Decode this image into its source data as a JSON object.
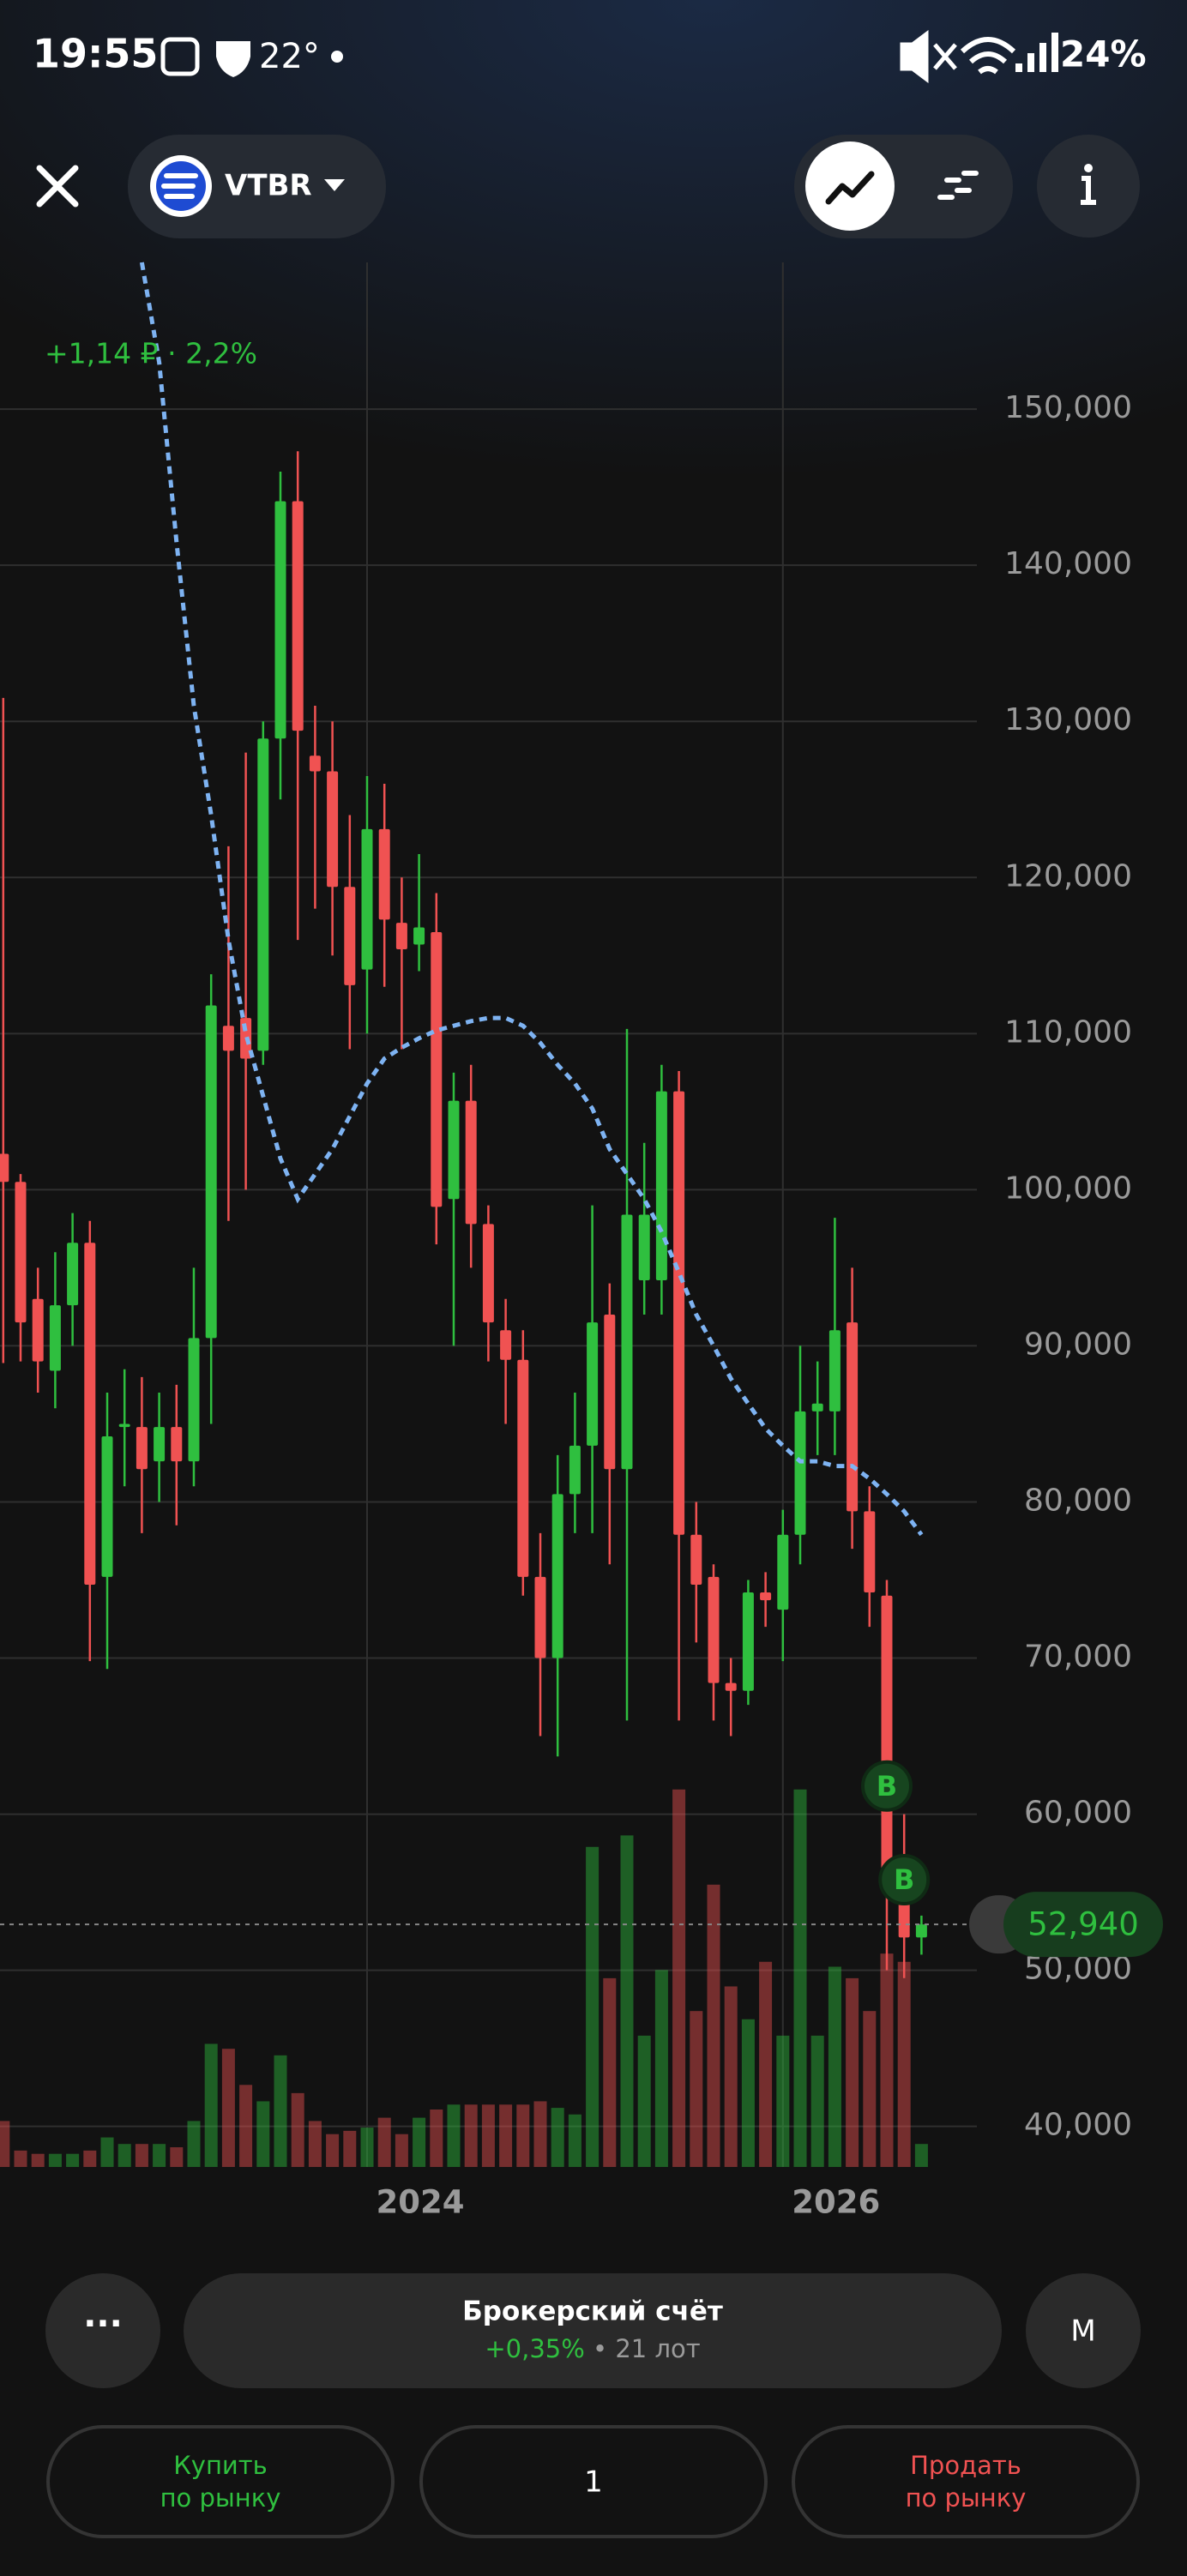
{
  "status_bar": {
    "time": "19:55",
    "temperature": "22°",
    "battery": "24%"
  },
  "header": {
    "ticker": "VTBR"
  },
  "chart_data": {
    "type": "candlestick",
    "change_label": "+1,14 ₽ · 2,2%",
    "categories": [
      null,
      null,
      null,
      null,
      null,
      null,
      null,
      null,
      null,
      null,
      null,
      null,
      null,
      null,
      null,
      null,
      null,
      null,
      null,
      null,
      null,
      "2024",
      null,
      null,
      null,
      null,
      null,
      null,
      null,
      null,
      null,
      null,
      null,
      null,
      null,
      null,
      null,
      null,
      null,
      null,
      null,
      null,
      null,
      null,
      null,
      "2026",
      null,
      null,
      null,
      null,
      null,
      null,
      null,
      null
    ],
    "open": [
      102300,
      100500,
      93000,
      88400,
      92600,
      96600,
      75200,
      84800,
      84800,
      82600,
      84800,
      82600,
      90500,
      110500,
      111000,
      108900,
      128900,
      144100,
      127800,
      126800,
      119400,
      114100,
      123100,
      117100,
      115700,
      116500,
      99400,
      105700,
      97800,
      91000,
      89100,
      75200,
      70000,
      80500,
      83600,
      92000,
      82100,
      94200,
      94200,
      106300,
      77900,
      75200,
      68400,
      67900,
      74200,
      73100,
      77900,
      85800,
      85800,
      91500,
      79400,
      74000,
      56300,
      52100
    ],
    "high": [
      131500,
      101000,
      95000,
      96000,
      98500,
      98000,
      87000,
      88500,
      88000,
      87000,
      87500,
      95000,
      113800,
      122000,
      128000,
      130000,
      146000,
      147300,
      131000,
      130000,
      124000,
      126500,
      126000,
      120000,
      121500,
      119000,
      107500,
      108000,
      99000,
      93000,
      91000,
      78000,
      83000,
      87000,
      99000,
      94000,
      110300,
      103000,
      108000,
      107600,
      80000,
      76000,
      70000,
      75000,
      75500,
      79500,
      90000,
      89000,
      98200,
      95000,
      81000,
      75000,
      60000,
      53500
    ],
    "low": [
      88900,
      89000,
      87000,
      86000,
      90000,
      69800,
      69300,
      81000,
      78000,
      80000,
      78500,
      81000,
      85000,
      98000,
      100000,
      108000,
      125000,
      116000,
      118000,
      115000,
      109000,
      110000,
      113000,
      109000,
      114000,
      96500,
      90000,
      95000,
      89000,
      85000,
      74000,
      65000,
      63700,
      78000,
      78000,
      76000,
      66000,
      92000,
      92000,
      66000,
      71000,
      66000,
      65000,
      67000,
      72000,
      69800,
      76000,
      83000,
      83000,
      77000,
      72000,
      50000,
      49500,
      51000
    ],
    "close": [
      100500,
      91500,
      89000,
      92600,
      96600,
      74700,
      84200,
      85000,
      82100,
      84800,
      82600,
      90500,
      111800,
      108900,
      108400,
      128900,
      144100,
      129400,
      126800,
      119400,
      113100,
      123100,
      117300,
      115400,
      116800,
      98900,
      105700,
      97800,
      91500,
      89100,
      75200,
      70000,
      80500,
      83600,
      91500,
      82100,
      98400,
      98400,
      106300,
      77900,
      74700,
      68400,
      67900,
      74200,
      73700,
      77900,
      85800,
      86300,
      91000,
      79400,
      74200,
      56300,
      52100,
      52940
    ],
    "volume": [
      28,
      10,
      8,
      8,
      8,
      10,
      18,
      14,
      14,
      14,
      12,
      28,
      75,
      72,
      50,
      40,
      68,
      45,
      28,
      20,
      22,
      24,
      30,
      20,
      30,
      35,
      38,
      38,
      38,
      38,
      38,
      40,
      36,
      32,
      195,
      115,
      202,
      80,
      120,
      230,
      95,
      172,
      110,
      90,
      125,
      80,
      230,
      80,
      122,
      115,
      95,
      130,
      125,
      14
    ],
    "up_color": "#2fbf3f",
    "down_color": "#f05252",
    "moving_average": {
      "color": "#7eb3f2",
      "values": [
        null,
        null,
        null,
        null,
        null,
        null,
        null,
        null,
        159400,
        153000,
        141500,
        131000,
        124000,
        116000,
        110000,
        106000,
        102000,
        99400,
        101000,
        102600,
        104700,
        106800,
        108400,
        109100,
        109700,
        110200,
        110500,
        110800,
        111000,
        111000,
        110500,
        109400,
        108000,
        106800,
        105200,
        102600,
        101000,
        99400,
        97300,
        94700,
        92000,
        90000,
        87900,
        86300,
        84700,
        83600,
        82600,
        82600,
        82300,
        82300,
        81500,
        80500,
        79400,
        77900
      ]
    },
    "ylim": [
      37400,
      159400
    ],
    "yticks": [
      {
        "value": 40000,
        "label": "40,000"
      },
      {
        "value": 50000,
        "label": "50,000"
      },
      {
        "value": 60000,
        "label": "60,000"
      },
      {
        "value": 70000,
        "label": "70,000"
      },
      {
        "value": 80000,
        "label": "80,000"
      },
      {
        "value": 90000,
        "label": "90,000"
      },
      {
        "value": 100000,
        "label": "100,000"
      },
      {
        "value": 110000,
        "label": "110,000"
      },
      {
        "value": 120000,
        "label": "120,000"
      },
      {
        "value": 130000,
        "label": "130,000"
      },
      {
        "value": 140000,
        "label": "140,000"
      },
      {
        "value": 150000,
        "label": "150,000"
      }
    ],
    "grid": true,
    "current_price": {
      "value": 52940,
      "label": "52,940"
    },
    "markers": [
      {
        "label": "B",
        "index": 51,
        "value": 61800
      },
      {
        "label": "B",
        "index": 52,
        "value": 55800
      }
    ]
  },
  "account": {
    "title": "Брокерский счёт",
    "change": "+0,35%",
    "lots": " • 21 лот",
    "more": "···",
    "mode": "M"
  },
  "order": {
    "buy": [
      "Купить",
      "по рынку"
    ],
    "quantity": "1",
    "sell": [
      "Продать",
      "по рынку"
    ]
  }
}
